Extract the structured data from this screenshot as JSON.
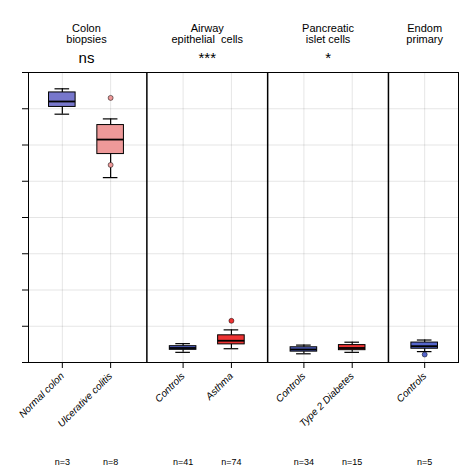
{
  "chart_data": {
    "type": "box",
    "categories": [
      "Normal colon",
      "Ulcerative colitis",
      "Controls",
      "Asthma",
      "Controls",
      "Type 2 Diabetes",
      "Controls"
    ],
    "n_labels": [
      "n=3",
      "n=8",
      "n=41",
      "n=74",
      "n=34",
      "n=15",
      "n=5"
    ],
    "section": [
      "Colon\nbiopsies",
      "Colon\nbiopsies",
      "Airway\nepithelial  cells",
      "Airway\nepithelial  cells",
      "Pancreatic\nislet cells",
      "Pancreatic\nislet cells",
      "Endom\nprimary"
    ],
    "section_labels": [
      "Colon\nbiopsies",
      "Airway\nepithelial  cells",
      "Pancreatic\nislet cells",
      "Endom\nprimary"
    ],
    "significance": [
      "ns",
      "***",
      "*",
      null
    ],
    "median": [
      0.72,
      0.615,
      0.04,
      0.06,
      0.036,
      0.04,
      0.045
    ],
    "q1": [
      0.705,
      0.575,
      0.035,
      0.05,
      0.03,
      0.034,
      0.038
    ],
    "q3": [
      0.745,
      0.655,
      0.045,
      0.075,
      0.042,
      0.048,
      0.055
    ],
    "whisker_low": [
      0.685,
      0.51,
      0.028,
      0.038,
      0.024,
      0.028,
      0.03
    ],
    "whisker_high": [
      0.755,
      0.672,
      0.052,
      0.09,
      0.048,
      0.056,
      0.062
    ],
    "fliers": [
      [],
      [
        0.73,
        0.545
      ],
      [],
      [
        0.115
      ],
      [],
      [],
      [
        0.022
      ]
    ],
    "colors": [
      "#7777cc",
      "#ee9999",
      "#5566cc",
      "#ee3333",
      "#5566cc",
      "#ee3333",
      "#5566cc"
    ],
    "ylim": [
      0.0,
      0.8
    ],
    "yticks": [
      0.0,
      0.1,
      0.2,
      0.3,
      0.4,
      0.5,
      0.6,
      0.7,
      0.8
    ],
    "grid": true,
    "tick_labels": "x"
  }
}
